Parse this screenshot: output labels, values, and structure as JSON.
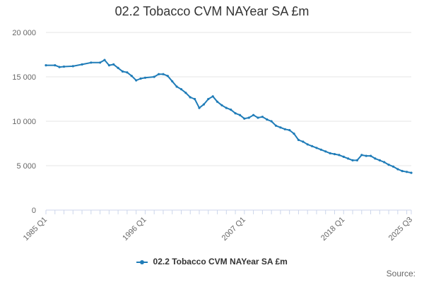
{
  "chart_data": {
    "type": "line",
    "title": "02.2 Tobacco CVM NAYear SA £m",
    "xlabel": "",
    "ylabel": "",
    "x_start": "1985 Q1",
    "x_end": "2025 Q3",
    "x_tick_labels": [
      "1985 Q1",
      "1996 Q1",
      "2007 Q1",
      "2018 Q1",
      "2025 Q3"
    ],
    "y_ticks": [
      0,
      5000,
      10000,
      15000,
      20000
    ],
    "y_tick_labels": [
      "0",
      "5 000",
      "10 000",
      "15 000",
      "20 000"
    ],
    "ylim": [
      0,
      20000
    ],
    "grid": true,
    "legend_position": "bottom",
    "series": [
      {
        "name": "02.2 Tobacco CVM NAYear SA £m",
        "color": "#1f7cb8",
        "points": [
          [
            "1985 Q1",
            16300
          ],
          [
            "1986 Q1",
            16300
          ],
          [
            "1986 Q3",
            16100
          ],
          [
            "1987 Q1",
            16150
          ],
          [
            "1988 Q1",
            16200
          ],
          [
            "1989 Q1",
            16400
          ],
          [
            "1990 Q1",
            16600
          ],
          [
            "1991 Q1",
            16600
          ],
          [
            "1991 Q3",
            16900
          ],
          [
            "1992 Q1",
            16300
          ],
          [
            "1992 Q3",
            16400
          ],
          [
            "1993 Q1",
            16000
          ],
          [
            "1993 Q3",
            15600
          ],
          [
            "1994 Q1",
            15500
          ],
          [
            "1994 Q3",
            15100
          ],
          [
            "1995 Q1",
            14600
          ],
          [
            "1995 Q3",
            14800
          ],
          [
            "1996 Q1",
            14900
          ],
          [
            "1997 Q1",
            15000
          ],
          [
            "1997 Q3",
            15300
          ],
          [
            "1998 Q1",
            15300
          ],
          [
            "1998 Q3",
            15100
          ],
          [
            "1999 Q1",
            14500
          ],
          [
            "1999 Q3",
            13900
          ],
          [
            "2000 Q1",
            13600
          ],
          [
            "2000 Q3",
            13200
          ],
          [
            "2001 Q1",
            12700
          ],
          [
            "2001 Q3",
            12500
          ],
          [
            "2002 Q1",
            11500
          ],
          [
            "2002 Q3",
            11900
          ],
          [
            "2003 Q1",
            12500
          ],
          [
            "2003 Q3",
            12800
          ],
          [
            "2004 Q1",
            12200
          ],
          [
            "2004 Q3",
            11800
          ],
          [
            "2005 Q1",
            11500
          ],
          [
            "2005 Q3",
            11300
          ],
          [
            "2006 Q1",
            10900
          ],
          [
            "2006 Q3",
            10700
          ],
          [
            "2007 Q1",
            10300
          ],
          [
            "2007 Q3",
            10400
          ],
          [
            "2008 Q1",
            10700
          ],
          [
            "2008 Q3",
            10400
          ],
          [
            "2009 Q1",
            10500
          ],
          [
            "2009 Q3",
            10200
          ],
          [
            "2010 Q1",
            10000
          ],
          [
            "2010 Q3",
            9500
          ],
          [
            "2011 Q1",
            9300
          ],
          [
            "2011 Q3",
            9100
          ],
          [
            "2012 Q1",
            9000
          ],
          [
            "2012 Q3",
            8600
          ],
          [
            "2013 Q1",
            7900
          ],
          [
            "2013 Q3",
            7700
          ],
          [
            "2014 Q1",
            7400
          ],
          [
            "2014 Q3",
            7200
          ],
          [
            "2015 Q1",
            7000
          ],
          [
            "2015 Q3",
            6800
          ],
          [
            "2016 Q1",
            6600
          ],
          [
            "2016 Q3",
            6400
          ],
          [
            "2017 Q1",
            6300
          ],
          [
            "2017 Q3",
            6200
          ],
          [
            "2018 Q1",
            6000
          ],
          [
            "2018 Q3",
            5800
          ],
          [
            "2019 Q1",
            5600
          ],
          [
            "2019 Q3",
            5600
          ],
          [
            "2020 Q1",
            6200
          ],
          [
            "2020 Q3",
            6100
          ],
          [
            "2021 Q1",
            6100
          ],
          [
            "2021 Q3",
            5800
          ],
          [
            "2022 Q1",
            5600
          ],
          [
            "2022 Q3",
            5400
          ],
          [
            "2023 Q1",
            5100
          ],
          [
            "2023 Q3",
            4900
          ],
          [
            "2024 Q1",
            4600
          ],
          [
            "2024 Q3",
            4400
          ],
          [
            "2025 Q1",
            4300
          ],
          [
            "2025 Q3",
            4200
          ]
        ]
      }
    ]
  },
  "legend": {
    "label": "02.2 Tobacco CVM NAYear SA £m"
  },
  "footer": {
    "source": "Source:"
  }
}
